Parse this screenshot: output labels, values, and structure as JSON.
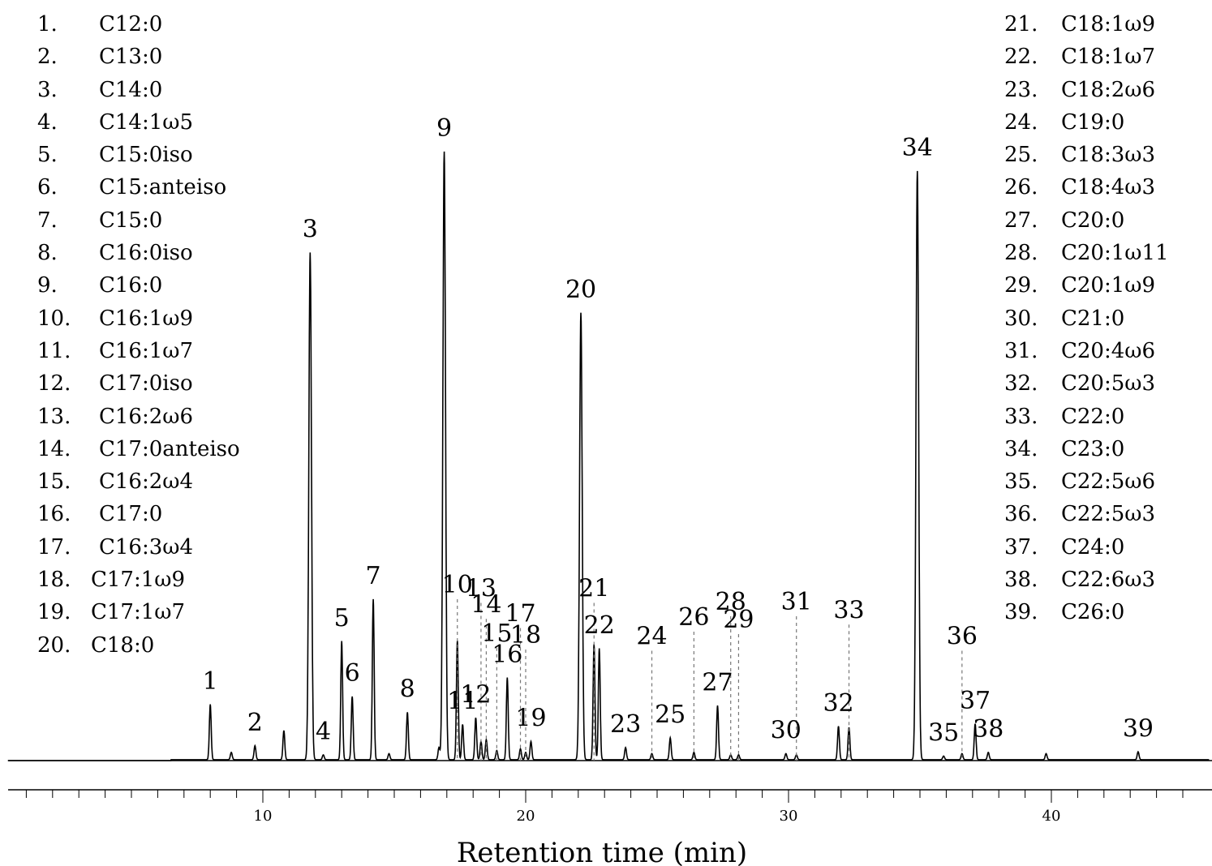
{
  "chart_data": {
    "type": "line",
    "title": "",
    "xlabel": "Retention time (min)",
    "ylabel": "",
    "xlim": [
      0,
      46
    ],
    "ylim": [
      0,
      100
    ],
    "x_ticks": [
      10,
      20,
      30,
      40
    ],
    "grid": false,
    "legend_position": "top-left and top-right",
    "peaks": [
      {
        "label": "1",
        "x": 8.0,
        "y": 9.1,
        "dashed": false
      },
      {
        "label": "2",
        "x": 9.7,
        "y": 2.3,
        "dashed": false
      },
      {
        "label": "3",
        "x": 11.8,
        "y": 83.4,
        "dashed": false
      },
      {
        "label": "4",
        "x": 12.3,
        "y": 0.8,
        "dashed": false
      },
      {
        "label": "5",
        "x": 13.0,
        "y": 19.5,
        "dashed": false
      },
      {
        "label": "6",
        "x": 13.4,
        "y": 10.4,
        "dashed": false
      },
      {
        "label": "7",
        "x": 14.2,
        "y": 26.4,
        "dashed": false
      },
      {
        "label": "8",
        "x": 15.5,
        "y": 7.8,
        "dashed": false
      },
      {
        "label": "9",
        "x": 16.9,
        "y": 100.0,
        "dashed": false
      },
      {
        "label": "10",
        "x": 17.4,
        "y": 19.6,
        "dashed": true
      },
      {
        "label": "11",
        "x": 17.6,
        "y": 5.8,
        "dashed": false
      },
      {
        "label": "12",
        "x": 18.1,
        "y": 6.9,
        "dashed": false
      },
      {
        "label": "13",
        "x": 18.3,
        "y": 3.0,
        "dashed": true
      },
      {
        "label": "14",
        "x": 18.5,
        "y": 3.3,
        "dashed": true
      },
      {
        "label": "15",
        "x": 18.9,
        "y": 1.5,
        "dashed": true
      },
      {
        "label": "16",
        "x": 19.3,
        "y": 13.5,
        "dashed": false
      },
      {
        "label": "17",
        "x": 19.8,
        "y": 1.8,
        "dashed": true
      },
      {
        "label": "18",
        "x": 20.0,
        "y": 1.2,
        "dashed": true
      },
      {
        "label": "19",
        "x": 20.2,
        "y": 3.0,
        "dashed": false
      },
      {
        "label": "20",
        "x": 22.1,
        "y": 73.5,
        "dashed": false
      },
      {
        "label": "21",
        "x": 22.6,
        "y": 19.0,
        "dashed": true
      },
      {
        "label": "22",
        "x": 22.8,
        "y": 18.3,
        "dashed": false
      },
      {
        "label": "23",
        "x": 23.8,
        "y": 2.0,
        "dashed": false
      },
      {
        "label": "24",
        "x": 24.8,
        "y": 1.0,
        "dashed": true
      },
      {
        "label": "25",
        "x": 25.5,
        "y": 3.6,
        "dashed": false
      },
      {
        "label": "26",
        "x": 26.4,
        "y": 1.2,
        "dashed": true
      },
      {
        "label": "27",
        "x": 27.3,
        "y": 8.9,
        "dashed": false
      },
      {
        "label": "28",
        "x": 27.8,
        "y": 0.8,
        "dashed": true
      },
      {
        "label": "29",
        "x": 28.1,
        "y": 0.8,
        "dashed": true
      },
      {
        "label": "30",
        "x": 29.9,
        "y": 1.0,
        "dashed": false
      },
      {
        "label": "31",
        "x": 30.3,
        "y": 0.8,
        "dashed": true
      },
      {
        "label": "32",
        "x": 31.9,
        "y": 5.5,
        "dashed": false
      },
      {
        "label": "33",
        "x": 32.3,
        "y": 5.3,
        "dashed": true
      },
      {
        "label": "34",
        "x": 34.9,
        "y": 96.8,
        "dashed": false
      },
      {
        "label": "35",
        "x": 35.9,
        "y": 0.6,
        "dashed": false
      },
      {
        "label": "36",
        "x": 36.6,
        "y": 1.0,
        "dashed": true
      },
      {
        "label": "37",
        "x": 37.1,
        "y": 5.9,
        "dashed": false
      },
      {
        "label": "38",
        "x": 37.6,
        "y": 1.2,
        "dashed": false
      },
      {
        "label": "39",
        "x": 43.3,
        "y": 1.3,
        "dashed": false
      }
    ],
    "minor_peaks": [
      {
        "x": 8.8,
        "y": 1.2
      },
      {
        "x": 10.8,
        "y": 4.8
      },
      {
        "x": 14.8,
        "y": 1.0
      },
      {
        "x": 16.7,
        "y": 2.0
      },
      {
        "x": 39.8,
        "y": 1.0
      }
    ],
    "legend": {
      "left": [
        {
          "no": "1.",
          "name": "C12:0"
        },
        {
          "no": "2.",
          "name": "C13:0"
        },
        {
          "no": "3.",
          "name": "C14:0"
        },
        {
          "no": "4.",
          "name": "C14:1ω5"
        },
        {
          "no": "5.",
          "name": "C15:0iso"
        },
        {
          "no": "6.",
          "name": "C15:anteiso"
        },
        {
          "no": "7.",
          "name": "C15:0"
        },
        {
          "no": "8.",
          "name": "C16:0iso"
        },
        {
          "no": "9.",
          "name": "C16:0"
        },
        {
          "no": "10.",
          "name": "C16:1ω9"
        },
        {
          "no": "11.",
          "name": "C16:1ω7"
        },
        {
          "no": "12.",
          "name": "C17:0iso"
        },
        {
          "no": "13.",
          "name": "C16:2ω6"
        },
        {
          "no": "14.",
          "name": "C17:0anteiso"
        },
        {
          "no": "15.",
          "name": "C16:2ω4"
        },
        {
          "no": "16.",
          "name": "C17:0"
        },
        {
          "no": "17.",
          "name": "C16:3ω4"
        },
        {
          "no": "18.",
          "name": "C17:1ω9",
          "wide": true
        },
        {
          "no": "19.",
          "name": "C17:1ω7",
          "wide": true
        },
        {
          "no": "20.",
          "name": "C18:0",
          "wide": true
        }
      ],
      "right": [
        {
          "no": "21.",
          "name": "C18:1ω9"
        },
        {
          "no": "22.",
          "name": "C18:1ω7"
        },
        {
          "no": "23.",
          "name": "C18:2ω6"
        },
        {
          "no": "24.",
          "name": "C19:0"
        },
        {
          "no": "25.",
          "name": "C18:3ω3"
        },
        {
          "no": "26.",
          "name": "C18:4ω3"
        },
        {
          "no": "27.",
          "name": "C20:0"
        },
        {
          "no": "28.",
          "name": "C20:1ω11"
        },
        {
          "no": "29.",
          "name": "C20:1ω9"
        },
        {
          "no": "30.",
          "name": "C21:0"
        },
        {
          "no": "31.",
          "name": "C20:4ω6"
        },
        {
          "no": "32.",
          "name": "C20:5ω3"
        },
        {
          "no": "33.",
          "name": "C22:0"
        },
        {
          "no": "34.",
          "name": "C23:0"
        },
        {
          "no": "35.",
          "name": "C22:5ω6"
        },
        {
          "no": "36.",
          "name": "C22:5ω3"
        },
        {
          "no": "37.",
          "name": "C24:0"
        },
        {
          "no": "38.",
          "name": "C22:6ω3"
        },
        {
          "no": "39.",
          "name": "C26:0"
        }
      ]
    },
    "colors": {
      "trace": "#000000",
      "guide": "#777777"
    }
  }
}
